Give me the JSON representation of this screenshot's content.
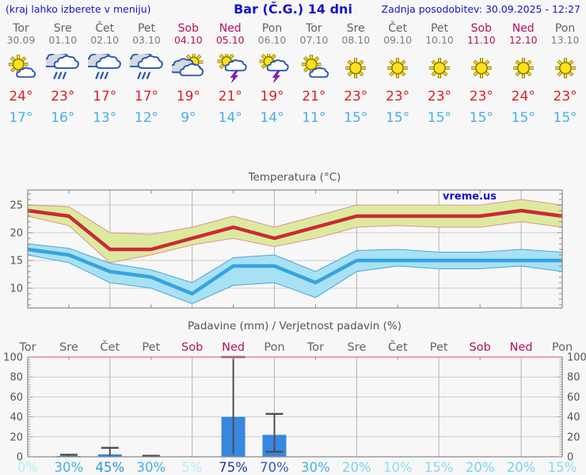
{
  "header": {
    "hint": "(kraj lahko izberete v meniju)",
    "title": "Bar (Č.G.) 14 dni",
    "updated": "Zadnja posodobitev: 30.09.2025 - 12:27"
  },
  "watermark": "vreme.us",
  "colors": {
    "header_blue": "#1414cc",
    "weekday_gray": "#636363",
    "weekend_red": "#b8105a",
    "temp_max_red": "#dc1f26",
    "temp_min_blue": "#45b0e8",
    "axis_text": "#555555"
  },
  "forecast": {
    "days": [
      {
        "name": "Tor",
        "date": "30.09",
        "icon": "sun-small-cloud",
        "tmax": 24,
        "tmin": 17,
        "weekend": false
      },
      {
        "name": "Sre",
        "date": "01.10",
        "icon": "rain",
        "tmax": 23,
        "tmin": 16,
        "weekend": false
      },
      {
        "name": "Čet",
        "date": "02.10",
        "icon": "rain",
        "tmax": 17,
        "tmin": 13,
        "weekend": false
      },
      {
        "name": "Pet",
        "date": "03.10",
        "icon": "rain",
        "tmax": 17,
        "tmin": 12,
        "weekend": false
      },
      {
        "name": "Sob",
        "date": "04.10",
        "icon": "sun-behind-cloud",
        "tmax": 19,
        "tmin": 9,
        "weekend": true
      },
      {
        "name": "Ned",
        "date": "05.10",
        "icon": "sun-cloud-lightning",
        "tmax": 21,
        "tmin": 14,
        "weekend": true
      },
      {
        "name": "Pon",
        "date": "06.10",
        "icon": "sun-cloud-lightning",
        "tmax": 19,
        "tmin": 14,
        "weekend": false
      },
      {
        "name": "Tor",
        "date": "07.10",
        "icon": "sun-small-cloud",
        "tmax": 21,
        "tmin": 11,
        "weekend": false
      },
      {
        "name": "Sre",
        "date": "08.10",
        "icon": "sun",
        "tmax": 23,
        "tmin": 15,
        "weekend": false
      },
      {
        "name": "Čet",
        "date": "09.10",
        "icon": "sun",
        "tmax": 23,
        "tmin": 15,
        "weekend": false
      },
      {
        "name": "Pet",
        "date": "10.10",
        "icon": "sun",
        "tmax": 23,
        "tmin": 15,
        "weekend": false
      },
      {
        "name": "Sob",
        "date": "11.10",
        "icon": "sun",
        "tmax": 23,
        "tmin": 15,
        "weekend": true
      },
      {
        "name": "Ned",
        "date": "12.10",
        "icon": "sun",
        "tmax": 24,
        "tmin": 15,
        "weekend": true
      },
      {
        "name": "Pon",
        "date": "13.10",
        "icon": "sun",
        "tmax": 23,
        "tmin": 15,
        "weekend": false
      }
    ]
  },
  "chart_data": [
    {
      "type": "line",
      "title": "Temperatura (°C)",
      "categories": [
        "30.09",
        "01.10",
        "02.10",
        "03.10",
        "04.10",
        "05.10",
        "06.10",
        "07.10",
        "08.10",
        "09.10",
        "10.10",
        "11.10",
        "12.10",
        "13.10"
      ],
      "ylim": [
        6.5,
        27.5
      ],
      "yticks": [
        10,
        15,
        20,
        25
      ],
      "grid_x_indexes": [
        2,
        4,
        6,
        8,
        10,
        12
      ],
      "legend_position": "none",
      "series": [
        {
          "name": "temp-max",
          "color": "#cb2936",
          "band_color": "#dcea9e",
          "band_edge": "#e78f8f",
          "values": [
            24,
            23,
            17,
            17,
            19,
            21,
            19,
            21,
            23,
            23,
            23,
            23,
            24,
            23
          ],
          "band_upper": [
            25,
            24.7,
            20,
            19.7,
            21,
            23,
            21,
            23,
            25,
            25,
            25,
            25,
            26,
            25
          ],
          "band_lower": [
            23,
            21.3,
            14.6,
            16,
            17.8,
            19,
            17.5,
            19,
            21,
            21.3,
            21,
            21,
            22,
            21
          ]
        },
        {
          "name": "temp-min",
          "color": "#36a3e0",
          "band_color": "#a8e1f3",
          "band_edge": "#4ba4d8",
          "values": [
            17,
            16,
            13,
            12,
            9,
            14,
            14,
            11,
            15,
            15,
            15,
            15,
            15,
            15
          ],
          "band_upper": [
            18,
            17.2,
            14.5,
            13.3,
            11,
            15.5,
            16,
            13,
            16.8,
            17,
            16.5,
            16.5,
            17,
            16.5
          ],
          "band_lower": [
            16,
            14.6,
            11,
            10,
            7.2,
            10.5,
            11,
            8.3,
            13,
            14,
            13.5,
            13.5,
            14,
            13
          ]
        }
      ]
    },
    {
      "type": "bar",
      "title": "Padavine (mm) / Verjetnost padavin (%)",
      "categories": [
        "Tor",
        "Sre",
        "Čet",
        "Pet",
        "Sob",
        "Ned",
        "Pon",
        "Tor",
        "Sre",
        "Čet",
        "Pet",
        "Sob",
        "Ned",
        "Pon"
      ],
      "weekend_indexes": [
        4,
        5,
        11,
        12
      ],
      "precip_mm": [
        0,
        0.8,
        2.5,
        0.4,
        0,
        40,
        22,
        0,
        0,
        0,
        0,
        0,
        0,
        0
      ],
      "whisker_high": [
        null,
        2,
        9,
        1,
        null,
        105,
        43,
        null,
        null,
        null,
        null,
        null,
        null,
        null
      ],
      "whisker_low": [
        null,
        0,
        0,
        0,
        null,
        3,
        5,
        null,
        null,
        null,
        null,
        null,
        null,
        null
      ],
      "probability_pct": [
        "0%",
        "30%",
        "45%",
        "30%",
        "5%",
        "75%",
        "70%",
        "30%",
        "20%",
        "10%",
        "15%",
        "20%",
        "20%",
        "15%"
      ],
      "probability_colors": [
        "#b5ecf7",
        "#45b0e8",
        "#2b95da",
        "#45b0e8",
        "#b5ecf7",
        "#2534ae",
        "#3a54cb",
        "#45b0e8",
        "#76d3f0",
        "#90def5",
        "#86daf3",
        "#76d3f0",
        "#76d3f0",
        "#86daf3"
      ],
      "ylim": [
        0,
        100
      ],
      "yticks": [
        0,
        20,
        40,
        60,
        80,
        100
      ],
      "grid_x_indexes": [
        2,
        4,
        6,
        8,
        10,
        12
      ],
      "bar_color": "#3787e0",
      "whisker_color": "#4d4d4d",
      "top_line_color": "#e0708e"
    }
  ]
}
